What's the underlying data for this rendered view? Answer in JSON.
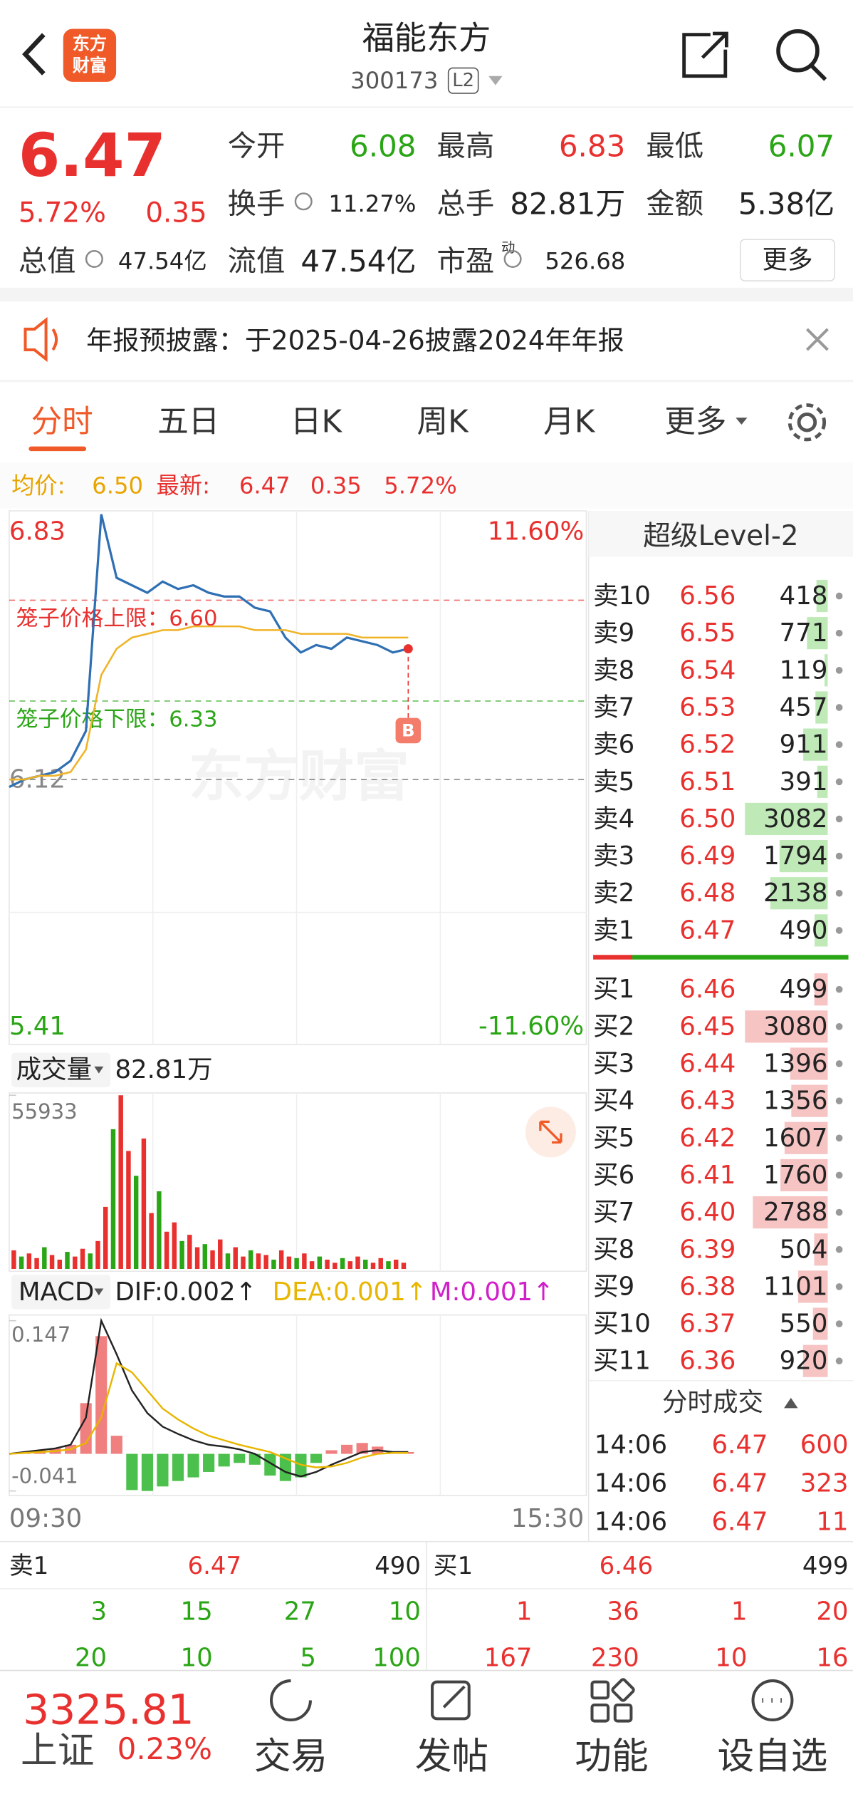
{
  "header": {
    "logo": [
      "东方",
      "财富"
    ],
    "title": "福能东方",
    "code": "300173",
    "badge": "L2"
  },
  "quote": {
    "price": "6.47",
    "percent": "5.72%",
    "change": "0.35",
    "fields": [
      {
        "label": "今开",
        "value": "6.08",
        "color": "#2aa515"
      },
      {
        "label": "最高",
        "value": "6.83",
        "color": "#e8312f"
      },
      {
        "label": "最低",
        "value": "6.07",
        "color": "#2aa515"
      },
      {
        "label": "换手",
        "value": "11.27%"
      },
      {
        "label": "总手",
        "value": "82.81万"
      },
      {
        "label": "金额",
        "value": "5.38亿"
      },
      {
        "label": "总值",
        "value": "47.54亿"
      },
      {
        "label": "流值",
        "value": "47.54亿"
      },
      {
        "label": "市盈",
        "sup": "动",
        "value": "526.68"
      }
    ],
    "more": "更多"
  },
  "notice": "年报预披露：于2025-04-26披露2024年年报",
  "tabs": [
    "分时",
    "五日",
    "日K",
    "周K",
    "月K",
    "更多"
  ],
  "summary": {
    "avg_label": "均价:",
    "avg": "6.50",
    "latest_label": "最新:",
    "latest": "6.47",
    "change": "0.35",
    "percent": "5.72%"
  },
  "chart_data": [
    {
      "type": "line",
      "watermark": "东方财富",
      "ylim": [
        5.41,
        6.83
      ],
      "yticks": [
        5.41,
        6.12,
        6.83
      ],
      "y2lim": [
        -11.6,
        11.6
      ],
      "y2ticks": [
        {
          "value": 11.6,
          "label": "11.60%"
        },
        {
          "value": -11.6,
          "label": "-11.60%"
        }
      ],
      "annotations": [
        {
          "label": "笼子价格上限：6.60",
          "value": 6.6,
          "color": "#e8312f"
        },
        {
          "label": "笼子价格下限：6.33",
          "value": 6.33,
          "color": "#2aa515"
        }
      ],
      "marker": "B",
      "time_labels": [
        "09:30",
        "15:30"
      ],
      "series": [
        {
          "color": "#2f6fb3",
          "values": [
            6.1,
            6.12,
            6.13,
            6.14,
            6.17,
            6.25,
            6.83,
            6.66,
            6.64,
            6.62,
            6.65,
            6.63,
            6.64,
            6.62,
            6.61,
            6.61,
            6.58,
            6.57,
            6.5,
            6.46,
            6.48,
            6.47,
            6.5,
            6.49,
            6.48,
            6.46,
            6.47
          ]
        },
        {
          "color": "#f0b429",
          "values": [
            6.12,
            6.12,
            6.13,
            6.13,
            6.14,
            6.2,
            6.4,
            6.47,
            6.5,
            6.51,
            6.52,
            6.52,
            6.53,
            6.53,
            6.53,
            6.53,
            6.52,
            6.52,
            6.52,
            6.51,
            6.51,
            6.51,
            6.51,
            6.5,
            6.5,
            6.5,
            6.5
          ]
        }
      ]
    },
    {
      "type": "bar",
      "label": "成交量",
      "total": "82.81万",
      "ylim": [
        0,
        55933
      ],
      "yticks": [
        55933
      ],
      "values": [
        6000,
        4000,
        5000,
        3500,
        7000,
        4500,
        3000,
        5500,
        4000,
        6500,
        5000,
        9000,
        20000,
        45000,
        55933,
        38000,
        30000,
        42000,
        18000,
        25000,
        12000,
        15000,
        9000,
        11000,
        7000,
        8000,
        6000,
        9500,
        5000,
        7000,
        4000,
        6000,
        5000,
        4500,
        3000,
        6000,
        4000,
        3500,
        5000,
        2500,
        4000,
        3000,
        2000,
        3500,
        2500,
        4000,
        3000,
        2000,
        3500,
        2500,
        3000,
        2000
      ]
    },
    {
      "type": "macd",
      "label": "MACD",
      "legend": [
        {
          "text": "DIF:0.002↑",
          "color": "#222222"
        },
        {
          "text": "DEA:0.001↑",
          "color": "#e8b600"
        },
        {
          "text": "M:0.001↑",
          "color": "#d020c8"
        }
      ],
      "ylim": [
        -0.041,
        0.147
      ],
      "yticks": [
        0.147,
        -0.041
      ],
      "series": [
        {
          "color": "#222222",
          "values": [
            0,
            0.002,
            0.004,
            0.006,
            0.01,
            0.04,
            0.147,
            0.11,
            0.07,
            0.045,
            0.03,
            0.022,
            0.015,
            0.01,
            0.008,
            0.005,
            0.0,
            -0.01,
            -0.02,
            -0.025,
            -0.02,
            -0.012,
            -0.005,
            0.002,
            0.004,
            0.002,
            0.002
          ]
        },
        {
          "color": "#e8b600",
          "values": [
            0,
            0.001,
            0.002,
            0.003,
            0.005,
            0.012,
            0.04,
            0.1,
            0.09,
            0.07,
            0.05,
            0.038,
            0.028,
            0.02,
            0.015,
            0.01,
            0.006,
            0.002,
            -0.005,
            -0.012,
            -0.015,
            -0.014,
            -0.01,
            -0.004,
            0.0,
            0.001,
            0.001
          ]
        }
      ],
      "histogram": [
        0,
        0.002,
        0.004,
        0.006,
        0.01,
        0.056,
        0.13,
        0.02,
        -0.04,
        -0.041,
        -0.036,
        -0.03,
        -0.026,
        -0.02,
        -0.014,
        -0.01,
        -0.012,
        -0.024,
        -0.03,
        -0.026,
        -0.01,
        0.004,
        0.01,
        0.012,
        0.008,
        0.002,
        0.002
      ]
    }
  ],
  "order_book": {
    "title": "超级Level-2",
    "asks": [
      {
        "label": "卖10",
        "price": "6.56",
        "volume": 418
      },
      {
        "label": "卖9",
        "price": "6.55",
        "volume": 771
      },
      {
        "label": "卖8",
        "price": "6.54",
        "volume": 119
      },
      {
        "label": "卖7",
        "price": "6.53",
        "volume": 457
      },
      {
        "label": "卖6",
        "price": "6.52",
        "volume": 911
      },
      {
        "label": "卖5",
        "price": "6.51",
        "volume": 391
      },
      {
        "label": "卖4",
        "price": "6.50",
        "volume": 3082
      },
      {
        "label": "卖3",
        "price": "6.49",
        "volume": 1794
      },
      {
        "label": "卖2",
        "price": "6.48",
        "volume": 2138
      },
      {
        "label": "卖1",
        "price": "6.47",
        "volume": 490
      }
    ],
    "bids": [
      {
        "label": "买1",
        "price": "6.46",
        "volume": 499
      },
      {
        "label": "买2",
        "price": "6.45",
        "volume": 3080
      },
      {
        "label": "买3",
        "price": "6.44",
        "volume": 1396
      },
      {
        "label": "买4",
        "price": "6.43",
        "volume": 1356
      },
      {
        "label": "买5",
        "price": "6.42",
        "volume": 1607
      },
      {
        "label": "买6",
        "price": "6.41",
        "volume": 1760
      },
      {
        "label": "买7",
        "price": "6.40",
        "volume": 2788
      },
      {
        "label": "买8",
        "price": "6.39",
        "volume": 504
      },
      {
        "label": "买9",
        "price": "6.38",
        "volume": 1101
      },
      {
        "label": "买10",
        "price": "6.37",
        "volume": 550
      },
      {
        "label": "买11",
        "price": "6.36",
        "volume": 920
      }
    ],
    "trades_title": "分时成交",
    "trades": [
      {
        "time": "14:06",
        "price": "6.47",
        "volume": 600
      },
      {
        "time": "14:06",
        "price": "6.47",
        "volume": 323
      },
      {
        "time": "14:06",
        "price": "6.47",
        "volume": 11
      }
    ]
  },
  "bottom_panel": {
    "ask": {
      "label": "卖1",
      "price": "6.47",
      "volume": 490
    },
    "bid": {
      "label": "买1",
      "price": "6.46",
      "volume": 499
    },
    "ask_rows": [
      [
        3,
        15,
        27,
        10
      ],
      [
        20,
        10,
        5,
        100
      ]
    ],
    "bid_rows": [
      [
        1,
        36,
        1,
        20
      ],
      [
        167,
        230,
        10,
        16
      ]
    ]
  },
  "nav": {
    "index_value": "3325.81",
    "index_name": "上证",
    "index_percent": "0.23%",
    "items": [
      "交易",
      "发帖",
      "功能",
      "设自选"
    ]
  }
}
